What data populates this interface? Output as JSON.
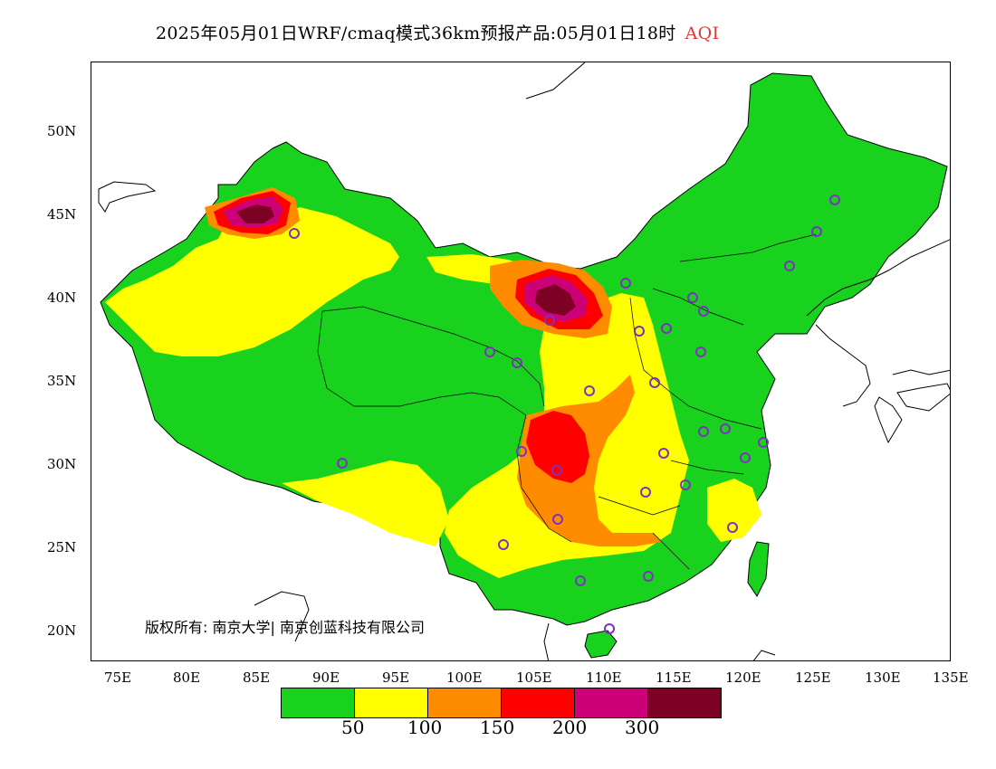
{
  "title": {
    "main": "2025年05月01日WRF/cmaq模式36km预报产品:05月01日18时",
    "variable": "AQI"
  },
  "axes": {
    "latitudes": [
      "50N",
      "45N",
      "40N",
      "35N",
      "30N",
      "25N",
      "20N"
    ],
    "longitudes": [
      "75E",
      "80E",
      "85E",
      "90E",
      "95E",
      "100E",
      "105E",
      "110E",
      "115E",
      "120E",
      "125E",
      "130E",
      "135E"
    ]
  },
  "legend": {
    "colors": [
      "#19d21e",
      "#ffff00",
      "#ff8c00",
      "#ff0000",
      "#cc0077",
      "#7d0025"
    ],
    "thresholds": [
      "50",
      "100",
      "150",
      "200",
      "300"
    ]
  },
  "copyright": "版权所有: 南京大学| 南京创蓝科技有限公司",
  "colors": {
    "good": "#19d21e",
    "moderate": "#ffff00",
    "usg": "#ff8c00",
    "unhealthy": "#ff0000",
    "very_unhealthy": "#cc0077",
    "hazardous": "#7d0025",
    "title_highlight": "#e03a3a",
    "station_marker": "#8030c0"
  }
}
